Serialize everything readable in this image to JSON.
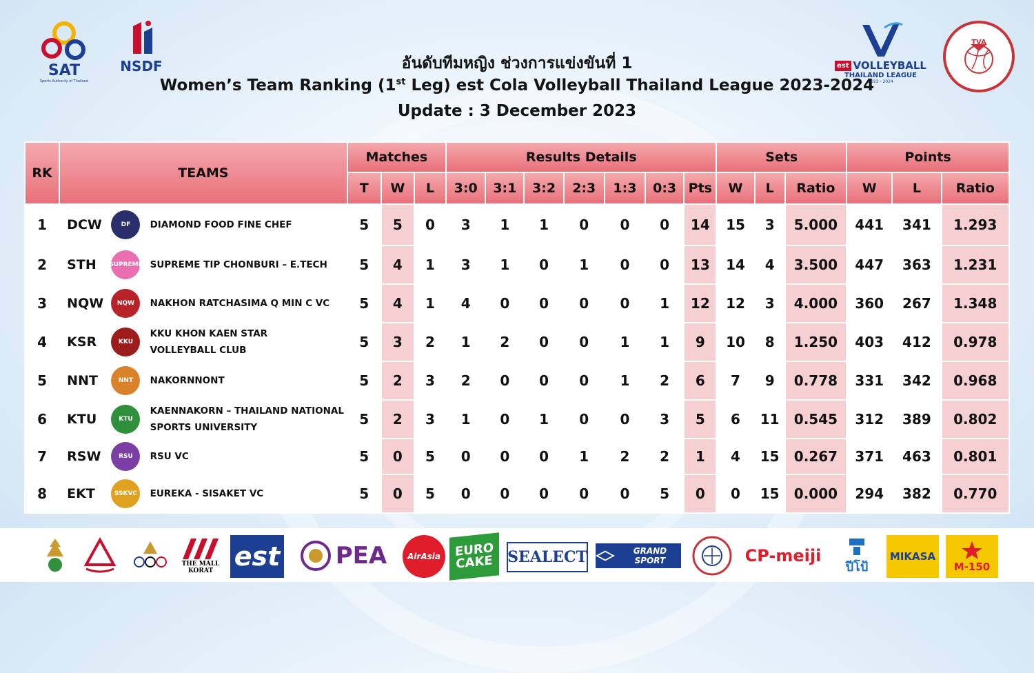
{
  "header": {
    "logo_sat": "SAT",
    "logo_sat_sub": "Sports Authority of Thailand",
    "logo_nsdf": "NSDF",
    "logo_vtl_line1": "VOLLEYBALL",
    "logo_vtl_line2": "THAILAND LEAGUE",
    "logo_vtl_line3": "2023 - 2024",
    "logo_tva": "TVA",
    "title_th": "อันดับทีมหญิง ช่วงการแข่งขันที่ 1",
    "title_en_pre": "Women’s Team Ranking (1",
    "title_en_sup": "st",
    "title_en_post": " Leg) est Cola Volleyball Thailand League 2023-2024",
    "update": "Update : 3 December 2023"
  },
  "table": {
    "h_rk": "RK",
    "h_teams": "TEAMS",
    "h_matches": "Matches",
    "h_results": "Results Details",
    "h_sets": "Sets",
    "h_points": "Points",
    "sub": [
      "T",
      "W",
      "L",
      "3:0",
      "3:1",
      "3:2",
      "2:3",
      "1:3",
      "0:3",
      "Pts",
      "W",
      "L",
      "Ratio",
      "W",
      "L",
      "Ratio"
    ],
    "rows": [
      {
        "rk": "1",
        "code": "DCW",
        "name1": "DIAMOND FOOD FINE CHEF",
        "name2": "",
        "logo_color": "#2a2f6b",
        "logo_text": "DF",
        "t": "5",
        "w": "5",
        "l": "0",
        "r30": "3",
        "r31": "1",
        "r32": "1",
        "r23": "0",
        "r13": "0",
        "r03": "0",
        "pts": "14",
        "sw": "15",
        "sl": "3",
        "sr": "5.000",
        "pw": "441",
        "pl": "341",
        "pr": "1.293"
      },
      {
        "rk": "2",
        "code": "STH",
        "name1": "SUPREME TIP CHONBURI – E.TECH",
        "name2": "",
        "logo_color": "#e96fb0",
        "logo_text": "SUPREME",
        "t": "5",
        "w": "4",
        "l": "1",
        "r30": "3",
        "r31": "1",
        "r32": "0",
        "r23": "1",
        "r13": "0",
        "r03": "0",
        "pts": "13",
        "sw": "14",
        "sl": "4",
        "sr": "3.500",
        "pw": "447",
        "pl": "363",
        "pr": "1.231"
      },
      {
        "rk": "3",
        "code": "NQW",
        "name1": "NAKHON RATCHASIMA Q MIN C VC",
        "name2": "",
        "logo_color": "#b8232a",
        "logo_text": "NQW",
        "t": "5",
        "w": "4",
        "l": "1",
        "r30": "4",
        "r31": "0",
        "r32": "0",
        "r23": "0",
        "r13": "0",
        "r03": "1",
        "pts": "12",
        "sw": "12",
        "sl": "3",
        "sr": "4.000",
        "pw": "360",
        "pl": "267",
        "pr": "1.348"
      },
      {
        "rk": "4",
        "code": "KSR",
        "name1": "KKU KHON KAEN STAR",
        "name2": "VOLLEYBALL CLUB",
        "logo_color": "#9c1c1c",
        "logo_text": "KKU",
        "t": "5",
        "w": "3",
        "l": "2",
        "r30": "1",
        "r31": "2",
        "r32": "0",
        "r23": "0",
        "r13": "1",
        "r03": "1",
        "pts": "9",
        "sw": "10",
        "sl": "8",
        "sr": "1.250",
        "pw": "403",
        "pl": "412",
        "pr": "0.978"
      },
      {
        "rk": "5",
        "code": "NNT",
        "name1": "NAKORNNONT",
        "name2": "",
        "logo_color": "#d9822b",
        "logo_text": "NNT",
        "t": "5",
        "w": "2",
        "l": "3",
        "r30": "2",
        "r31": "0",
        "r32": "0",
        "r23": "0",
        "r13": "1",
        "r03": "2",
        "pts": "6",
        "sw": "7",
        "sl": "9",
        "sr": "0.778",
        "pw": "331",
        "pl": "342",
        "pr": "0.968"
      },
      {
        "rk": "6",
        "code": "KTU",
        "name1": "KAENNAKORN – THAILAND NATIONAL",
        "name2": "SPORTS UNIVERSITY",
        "logo_color": "#2f8f3a",
        "logo_text": "KTU",
        "t": "5",
        "w": "2",
        "l": "3",
        "r30": "1",
        "r31": "0",
        "r32": "1",
        "r23": "0",
        "r13": "0",
        "r03": "3",
        "pts": "5",
        "sw": "6",
        "sl": "11",
        "sr": "0.545",
        "pw": "312",
        "pl": "389",
        "pr": "0.802"
      },
      {
        "rk": "7",
        "code": "RSW",
        "name1": "RSU VC",
        "name2": "",
        "logo_color": "#7b3fa3",
        "logo_text": "RSU",
        "t": "5",
        "w": "0",
        "l": "5",
        "r30": "0",
        "r31": "0",
        "r32": "0",
        "r23": "1",
        "r13": "2",
        "r03": "2",
        "pts": "1",
        "sw": "4",
        "sl": "15",
        "sr": "0.267",
        "pw": "371",
        "pl": "463",
        "pr": "0.801"
      },
      {
        "rk": "8",
        "code": "EKT",
        "name1": "EUREKA - SISAKET VC",
        "name2": "",
        "logo_color": "#e0a21e",
        "logo_text": "SSKVC",
        "t": "5",
        "w": "0",
        "l": "5",
        "r30": "0",
        "r31": "0",
        "r32": "0",
        "r23": "0",
        "r13": "0",
        "r03": "5",
        "pts": "0",
        "sw": "0",
        "sl": "15",
        "sr": "0.000",
        "pw": "294",
        "pl": "382",
        "pr": "0.770"
      }
    ]
  },
  "sponsors": {
    "mall": "THE MALL KORAT",
    "est": "est",
    "pea": "PEA",
    "airasia": "AirAsia",
    "eurocake": "EURO CAKE",
    "sealect": "SEALECT",
    "grandsport": "GRAND SPORT",
    "cpmeiji": "CP-meiji",
    "vitamin": "ปีโป้",
    "mikasa": "MIKASA",
    "m150": "M-150"
  },
  "colors": {
    "header_pink": "#e9707a",
    "highlight": "#f6cfd3"
  }
}
